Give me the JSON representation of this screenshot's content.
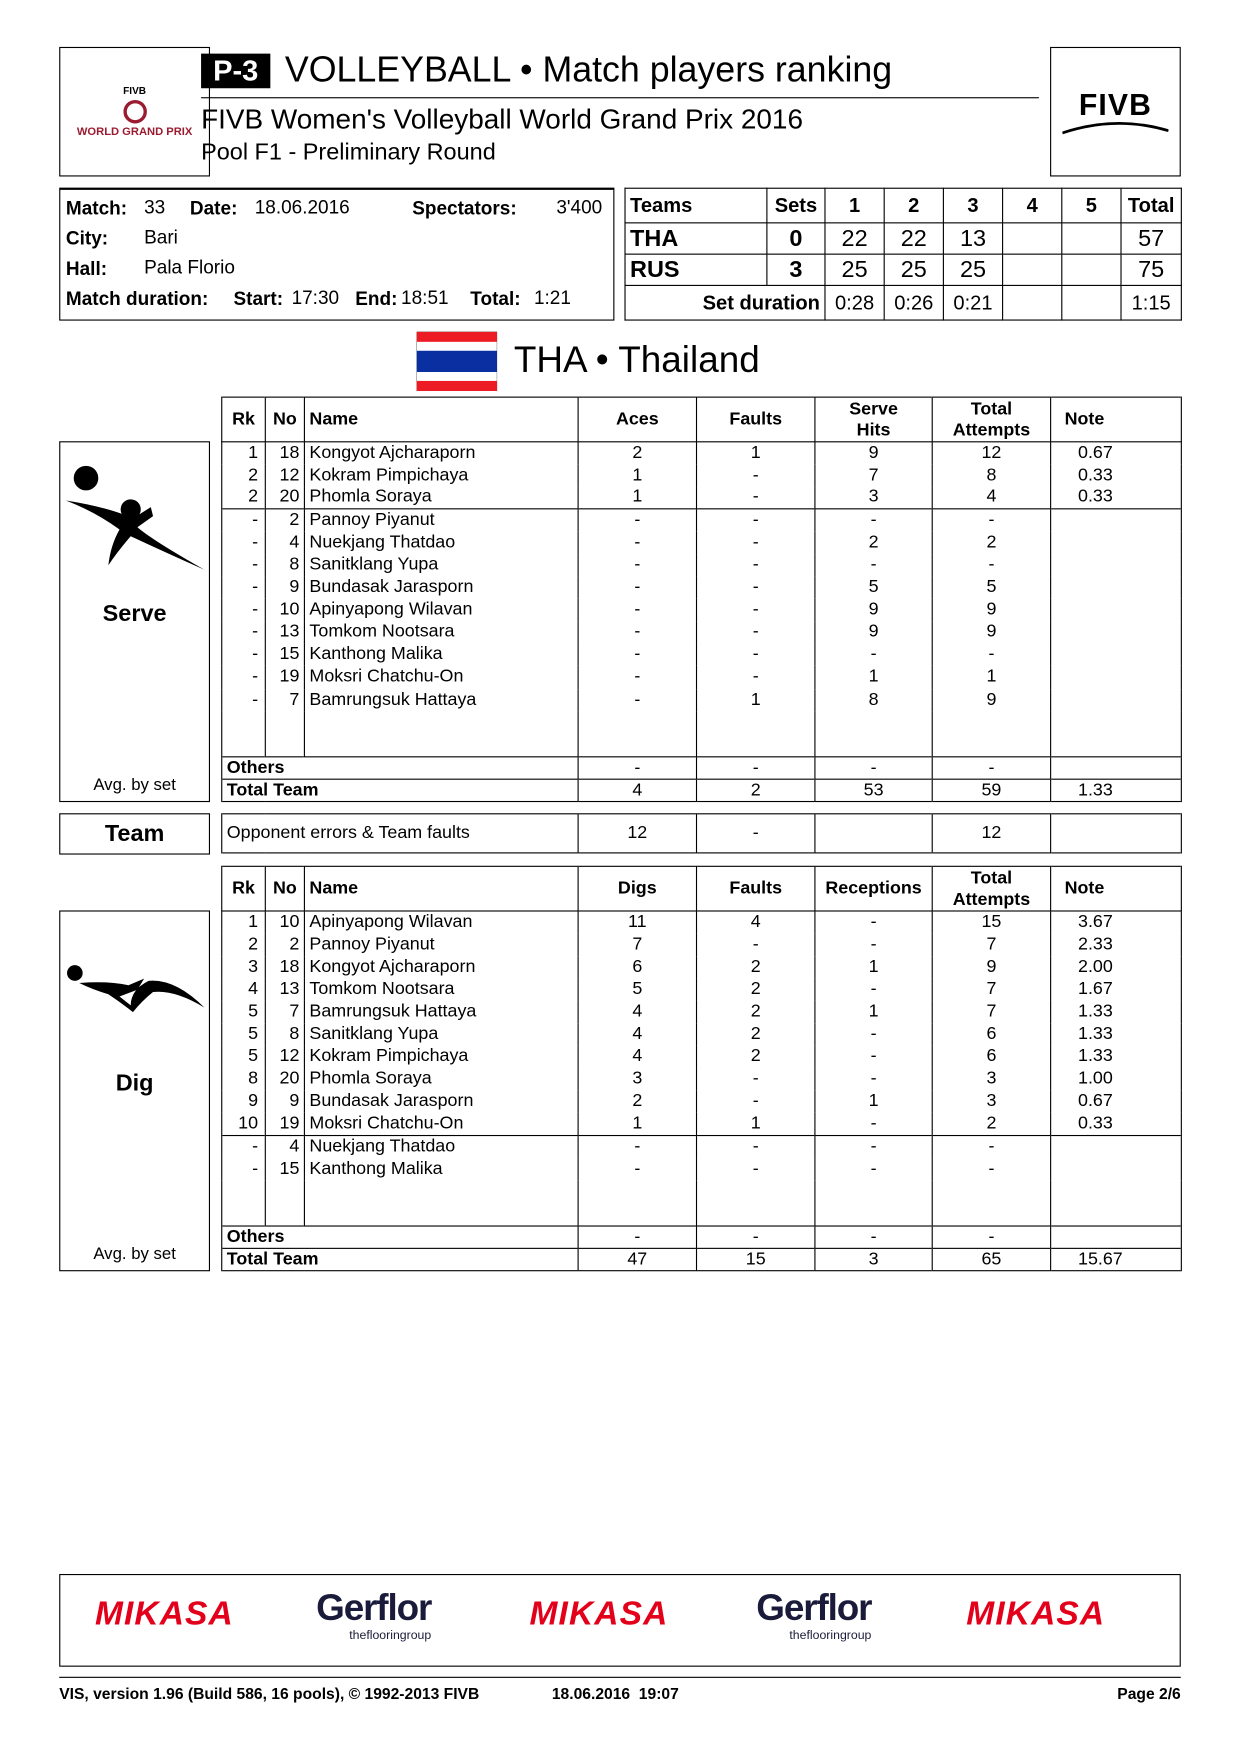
{
  "header": {
    "code": "P-3",
    "title": "VOLLEYBALL • Match players ranking",
    "competition": "FIVB Women's Volleyball World Grand Prix 2016",
    "pool": "Pool F1 - Preliminary Round",
    "left_logo_top": "FIVB",
    "left_logo_text": "WORLD GRAND PRIX",
    "right_logo": "FIVB"
  },
  "match": {
    "match_label": "Match:",
    "match": "33",
    "date_label": "Date:",
    "date": "18.06.2016",
    "spectators_label": "Spectators:",
    "spectators": "3'400",
    "city_label": "City:",
    "city": "Bari",
    "hall_label": "Hall:",
    "hall": "Pala Florio",
    "duration_label": "Match duration:",
    "start_label": "Start:",
    "start": "17:30",
    "end_label": "End:",
    "end": "18:51",
    "total_label": "Total:",
    "total": "1:21"
  },
  "score": {
    "headers": [
      "Teams",
      "Sets",
      "1",
      "2",
      "3",
      "4",
      "5",
      "Total"
    ],
    "rows": [
      [
        "THA",
        "0",
        "22",
        "22",
        "13",
        "",
        "",
        "57"
      ],
      [
        "RUS",
        "3",
        "25",
        "25",
        "25",
        "",
        "",
        "75"
      ]
    ],
    "duration": [
      "Set duration",
      "0:28",
      "0:26",
      "0:21",
      "",
      "",
      "1:15"
    ]
  },
  "team": {
    "flag_colors": [
      "#ed1c24",
      "#ffffff",
      "#0a2fa0"
    ],
    "title": "THA • Thailand"
  },
  "serve": {
    "label": "Serve",
    "avg": "Avg. by set",
    "headers": [
      "Rk",
      "No",
      "Name",
      "Aces",
      "Faults",
      "Serve\nHits",
      "Total\nAttempts",
      "Note"
    ],
    "ranked": [
      [
        "1",
        "18",
        "Kongyot Ajcharaporn",
        "2",
        "1",
        "9",
        "12",
        "0.67"
      ],
      [
        "2",
        "12",
        "Kokram Pimpichaya",
        "1",
        "-",
        "7",
        "8",
        "0.33"
      ],
      [
        "2",
        "20",
        "Phomla Soraya",
        "1",
        "-",
        "3",
        "4",
        "0.33"
      ]
    ],
    "unranked": [
      [
        "-",
        "2",
        "Pannoy Piyanut",
        "-",
        "-",
        "-",
        "-",
        ""
      ],
      [
        "-",
        "4",
        "Nuekjang Thatdao",
        "-",
        "-",
        "2",
        "2",
        ""
      ],
      [
        "-",
        "8",
        "Sanitklang Yupa",
        "-",
        "-",
        "-",
        "-",
        ""
      ],
      [
        "-",
        "9",
        "Bundasak Jarasporn",
        "-",
        "-",
        "5",
        "5",
        ""
      ],
      [
        "-",
        "10",
        "Apinyapong Wilavan",
        "-",
        "-",
        "9",
        "9",
        ""
      ],
      [
        "-",
        "13",
        "Tomkom Nootsara",
        "-",
        "-",
        "9",
        "9",
        ""
      ],
      [
        "-",
        "15",
        "Kanthong Malika",
        "-",
        "-",
        "-",
        "-",
        ""
      ],
      [
        "-",
        "19",
        "Moksri Chatchu-On",
        "-",
        "-",
        "1",
        "1",
        ""
      ],
      [
        "-",
        "7",
        "Bamrungsuk Hattaya",
        "-",
        "1",
        "8",
        "9",
        ""
      ]
    ],
    "others": [
      "Others",
      "-",
      "-",
      "-",
      "-",
      ""
    ],
    "total": [
      "Total Team",
      "4",
      "2",
      "53",
      "59",
      "1.33"
    ]
  },
  "team_row": {
    "label": "Team",
    "text": "Opponent errors & Team faults",
    "values": [
      "12",
      "-",
      "",
      "12",
      ""
    ]
  },
  "dig": {
    "label": "Dig",
    "avg": "Avg. by set",
    "headers": [
      "Rk",
      "No",
      "Name",
      "Digs",
      "Faults",
      "Receptions",
      "Total\nAttempts",
      "Note"
    ],
    "ranked": [
      [
        "1",
        "10",
        "Apinyapong Wilavan",
        "11",
        "4",
        "-",
        "15",
        "3.67"
      ],
      [
        "2",
        "2",
        "Pannoy Piyanut",
        "7",
        "-",
        "-",
        "7",
        "2.33"
      ],
      [
        "3",
        "18",
        "Kongyot Ajcharaporn",
        "6",
        "2",
        "1",
        "9",
        "2.00"
      ],
      [
        "4",
        "13",
        "Tomkom Nootsara",
        "5",
        "2",
        "-",
        "7",
        "1.67"
      ],
      [
        "5",
        "7",
        "Bamrungsuk Hattaya",
        "4",
        "2",
        "1",
        "7",
        "1.33"
      ],
      [
        "5",
        "8",
        "Sanitklang Yupa",
        "4",
        "2",
        "-",
        "6",
        "1.33"
      ],
      [
        "5",
        "12",
        "Kokram Pimpichaya",
        "4",
        "2",
        "-",
        "6",
        "1.33"
      ],
      [
        "8",
        "20",
        "Phomla Soraya",
        "3",
        "-",
        "-",
        "3",
        "1.00"
      ],
      [
        "9",
        "9",
        "Bundasak Jarasporn",
        "2",
        "-",
        "1",
        "3",
        "0.67"
      ],
      [
        "10",
        "19",
        "Moksri Chatchu-On",
        "1",
        "1",
        "-",
        "2",
        "0.33"
      ]
    ],
    "unranked": [
      [
        "-",
        "4",
        "Nuekjang Thatdao",
        "-",
        "-",
        "-",
        "-",
        ""
      ],
      [
        "-",
        "15",
        "Kanthong Malika",
        "-",
        "-",
        "-",
        "-",
        ""
      ]
    ],
    "others": [
      "Others",
      "-",
      "-",
      "-",
      "-",
      ""
    ],
    "total": [
      "Total Team",
      "47",
      "15",
      "3",
      "65",
      "15.67"
    ]
  },
  "sponsors": [
    "MIKASA",
    "Gerflor",
    "MIKASA",
    "Gerflor",
    "MIKASA"
  ],
  "sponsor_sub": "theflooringroup",
  "footer": {
    "left": "VIS, version 1.96 (Build 586, 16 pools), © 1992-2013 FIVB",
    "datetime": "18.06.2016  19:07",
    "page": "Page 2/6"
  }
}
